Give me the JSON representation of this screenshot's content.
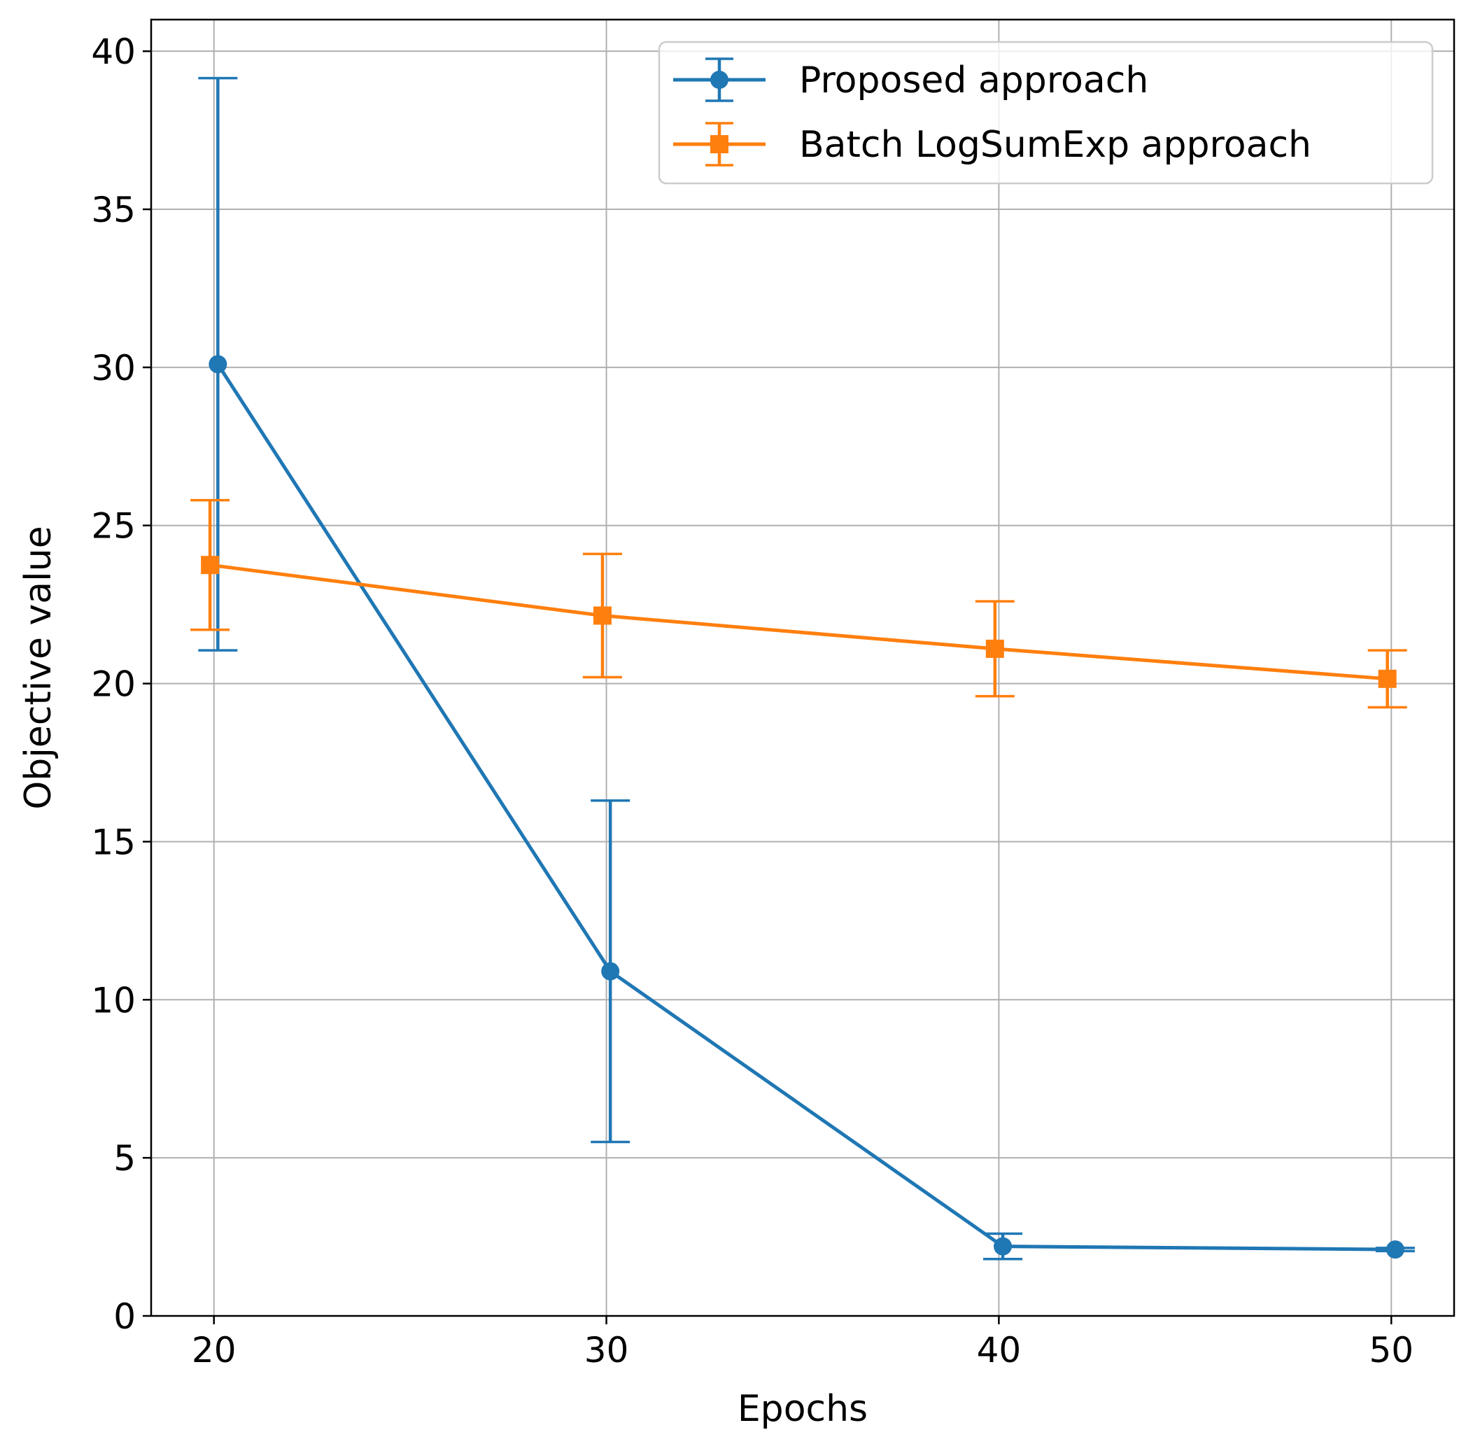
{
  "chart_data": {
    "type": "line",
    "title": "",
    "xlabel": "Epochs",
    "ylabel": "Objective value",
    "xlim": [
      18.4,
      51.6
    ],
    "ylim": [
      0,
      41
    ],
    "xticks": [
      20,
      30,
      40,
      50
    ],
    "yticks": [
      0,
      5,
      10,
      15,
      20,
      25,
      30,
      35,
      40
    ],
    "grid": true,
    "legend_position": "top-right",
    "series": [
      {
        "name": "Proposed approach",
        "color": "#1f77b4",
        "marker": "circle",
        "x": [
          20.1,
          30.1,
          40.1,
          50.1
        ],
        "values": [
          30.1,
          10.9,
          2.2,
          2.1
        ],
        "error": [
          9.05,
          5.4,
          0.4,
          0.05
        ]
      },
      {
        "name": "Batch LogSumExp approach",
        "color": "#ff7f0e",
        "marker": "square",
        "x": [
          19.9,
          29.9,
          39.9,
          49.9
        ],
        "values": [
          23.75,
          22.15,
          21.1,
          20.15
        ],
        "error": [
          2.05,
          1.95,
          1.5,
          0.9
        ]
      }
    ]
  }
}
